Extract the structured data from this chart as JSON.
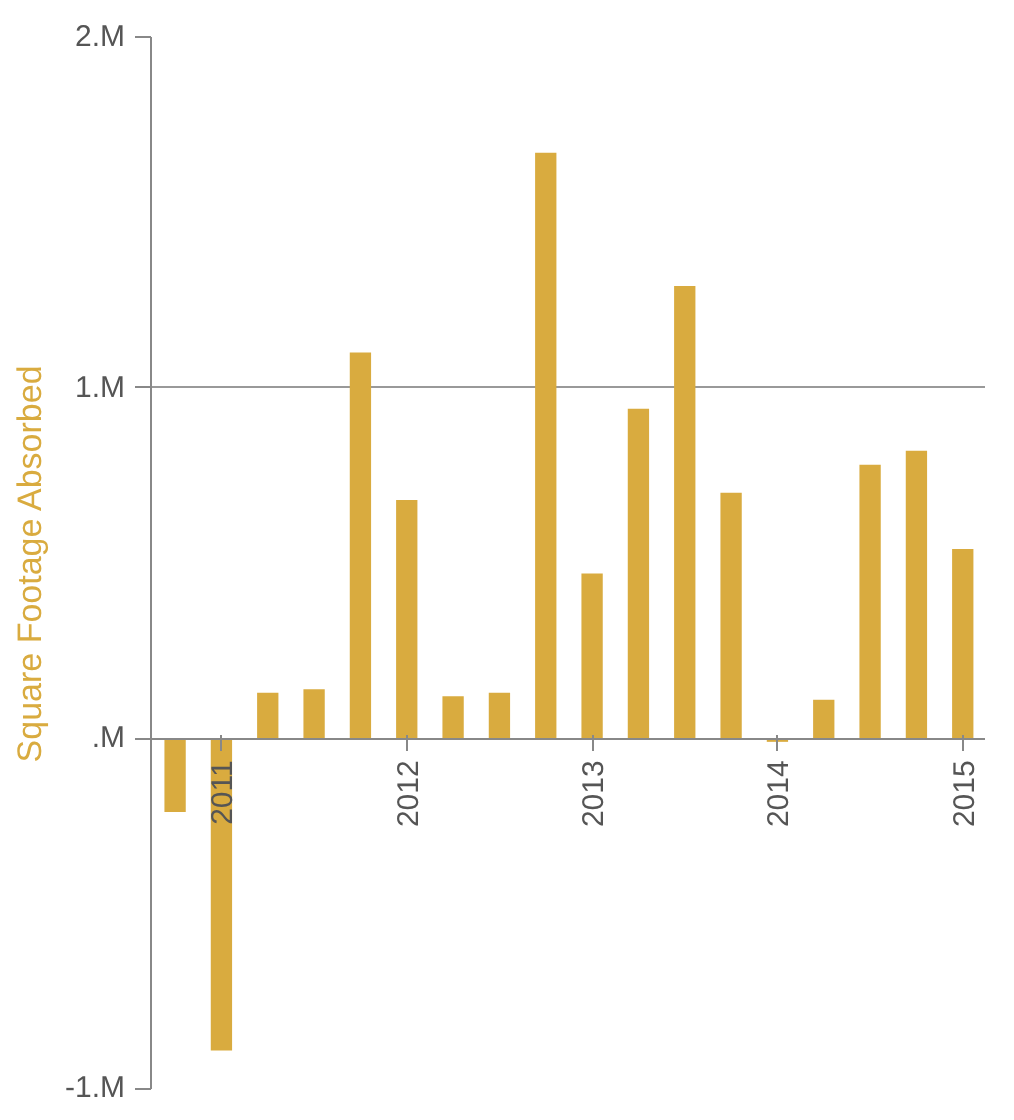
{
  "chart_data": {
    "type": "bar",
    "ylabel": "Square Footage Absorbed",
    "x": [
      2010.75,
      2011,
      2011.25,
      2011.5,
      2011.75,
      2012,
      2012.25,
      2012.5,
      2012.75,
      2013,
      2013.25,
      2013.5,
      2013.75,
      2014,
      2014.25,
      2014.5,
      2014.75,
      2015
    ],
    "series": [
      {
        "color": "#d9ab3f",
        "values": [
          -0.21,
          -0.89,
          0.13,
          0.14,
          1.1,
          0.68,
          0.12,
          0.13,
          1.67,
          0.47,
          0.94,
          1.29,
          0.7,
          -0.01,
          0.11,
          0.78,
          0.82,
          0.54
        ]
      }
    ],
    "xlim": [
      2010.62,
      2015.12
    ],
    "xticks": [
      2011,
      2012,
      2013,
      2014,
      2015
    ],
    "ylim": [
      -1,
      2
    ],
    "yticks": [
      {
        "value": -1,
        "label": "-1.M"
      },
      {
        "value": 0,
        "label": ".M"
      },
      {
        "value": 1,
        "label": "1.M"
      },
      {
        "value": 2,
        "label": "2.M"
      }
    ],
    "grid": "y"
  }
}
